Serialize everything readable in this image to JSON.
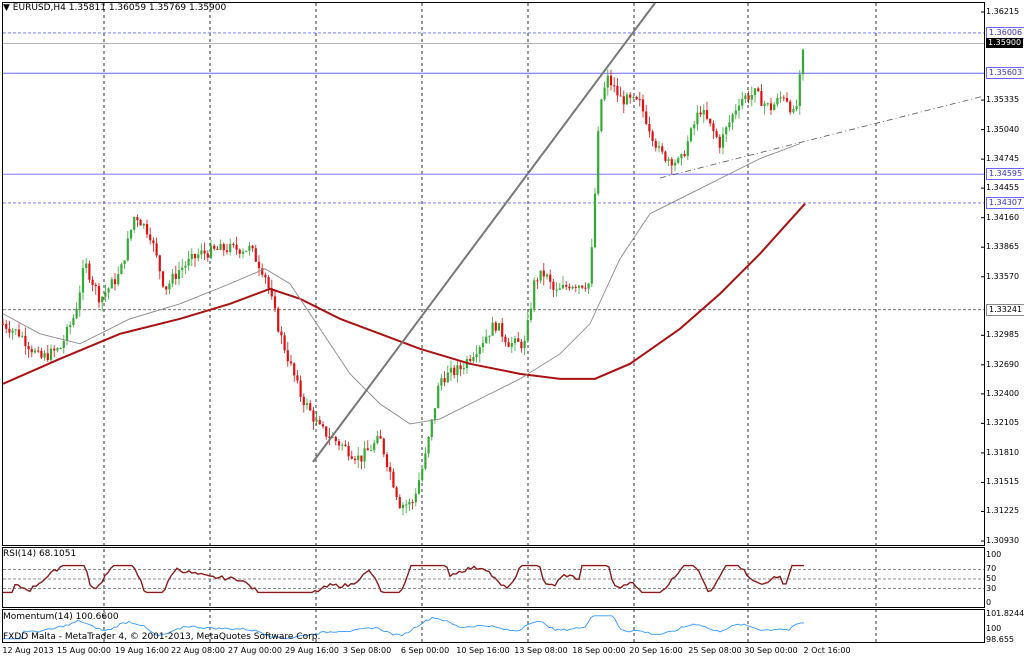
{
  "main": {
    "header": "EURUSD,H4  1.35811 1.36059 1.35769 1.35900",
    "watermark": "FXDD Malta - MetaTrader 4, © 2001-2013, MetaQuotes Software Corp.",
    "price_labels": [
      "1.36215",
      "1.35335",
      "1.35040",
      "1.34745",
      "1.34455",
      "1.34160",
      "1.33865",
      "1.33570",
      "1.32985",
      "1.32690",
      "1.32400",
      "1.32105",
      "1.31810",
      "1.31515",
      "1.31225",
      "1.30930"
    ],
    "levels": [
      {
        "name": "hline-1",
        "label": "1.36006",
        "style": "dashed",
        "color": "#6666ff"
      },
      {
        "name": "current-price",
        "label": "1.35900",
        "style": "solid",
        "color": "#aaaaaa"
      },
      {
        "name": "hline-2",
        "label": "1.35603",
        "style": "solid",
        "color": "#6666ff"
      },
      {
        "name": "hline-3",
        "label": "1.34595",
        "style": "solid",
        "color": "#6666ff"
      },
      {
        "name": "hline-4",
        "label": "1.34307",
        "style": "dashed",
        "color": "#6666ff"
      },
      {
        "name": "hline-5",
        "label": "1.33241",
        "style": "dashed",
        "color": "#666666"
      }
    ],
    "colors": {
      "bull": "#33aa33",
      "bear": "#dd1111",
      "ma_slow": "#aa1111",
      "ma_fast": "#888888",
      "trend": "#777777",
      "grid": "#000000"
    }
  },
  "rsi": {
    "header": "RSI(14) 68.1051",
    "labels": [
      "100",
      "70",
      "50",
      "30",
      "0"
    ]
  },
  "momentum": {
    "header": "Momentum(14) 100.6600",
    "labels": [
      "101.8244",
      "100",
      "98.655"
    ]
  },
  "x_axis": [
    "12 Aug 2013",
    "15 Aug 00:00",
    "19 Aug 16:00",
    "22 Aug 08:00",
    "27 Aug 00:00",
    "29 Aug 16:00",
    "3 Sep 08:00",
    "6 Sep 00:00",
    "10 Sep 16:00",
    "13 Sep 08:00",
    "18 Sep 00:00",
    "20 Sep 16:00",
    "25 Sep 08:00",
    "30 Sep 00:00",
    "2 Oct 16:00"
  ]
}
